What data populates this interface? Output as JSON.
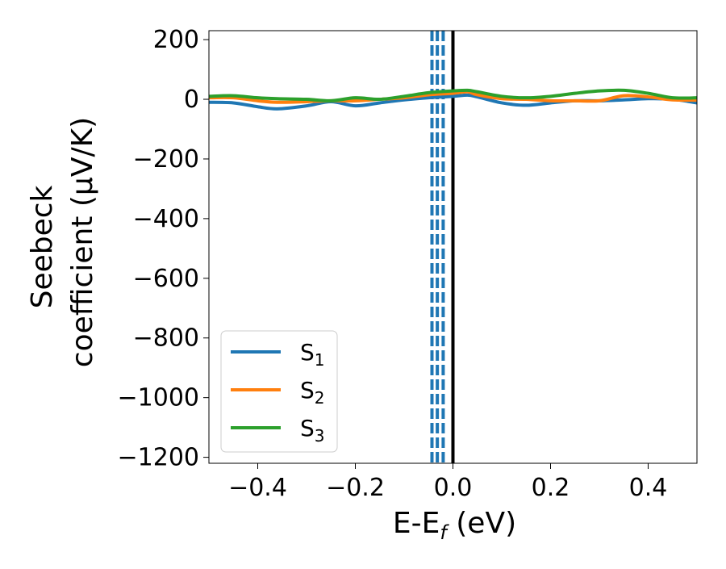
{
  "chart_data": {
    "type": "line",
    "xlabel": {
      "main": "E-E",
      "sub": "f",
      "tail": " (eV)"
    },
    "ylabel": {
      "line1": "Seebeck",
      "line2": "coefficient  (μV/K)"
    },
    "xlim": [
      -0.5,
      0.5
    ],
    "ylim": [
      -1220,
      230
    ],
    "x_ticks": [
      -0.4,
      -0.2,
      0.0,
      0.2,
      0.4
    ],
    "x_tick_labels": [
      "−0.4",
      "−0.2",
      "0.0",
      "0.2",
      "0.4"
    ],
    "y_ticks": [
      200,
      0,
      -200,
      -400,
      -600,
      -800,
      -1000,
      -1200
    ],
    "y_tick_labels": [
      "200",
      "0",
      "−200",
      "−400",
      "−600",
      "−800",
      "−1000",
      "−1200"
    ],
    "grid": false,
    "legend_position": "lower-left",
    "vertical_lines": [
      {
        "x": -0.043,
        "style": "dashed",
        "color": "#1f77b4"
      },
      {
        "x": -0.032,
        "style": "dashed",
        "color": "#1f77b4"
      },
      {
        "x": -0.02,
        "style": "dashed",
        "color": "#1f77b4"
      },
      {
        "x": 0.0,
        "style": "solid",
        "color": "#000000"
      }
    ],
    "x": [
      -0.5,
      -0.45,
      -0.4,
      -0.36,
      -0.3,
      -0.25,
      -0.2,
      -0.15,
      -0.1,
      -0.05,
      0.0,
      0.03,
      0.05,
      0.1,
      0.15,
      0.2,
      0.25,
      0.3,
      0.35,
      0.4,
      0.45,
      0.5
    ],
    "series": [
      {
        "name": "S",
        "sub": "1",
        "color": "#1f77b4",
        "values": [
          -10,
          -12,
          -25,
          -32,
          -22,
          -8,
          -22,
          -12,
          -2,
          5,
          10,
          14,
          8,
          -12,
          -20,
          -12,
          -5,
          -5,
          -2,
          2,
          0,
          -12
        ]
      },
      {
        "name": "S",
        "sub": "2",
        "color": "#ff7f0e",
        "values": [
          5,
          5,
          -5,
          -10,
          -8,
          -5,
          -5,
          0,
          5,
          15,
          20,
          25,
          15,
          2,
          0,
          -5,
          -5,
          -5,
          12,
          8,
          -2,
          -3
        ]
      },
      {
        "name": "S",
        "sub": "3",
        "color": "#2ca02c",
        "values": [
          10,
          12,
          5,
          2,
          0,
          -5,
          5,
          0,
          10,
          22,
          28,
          30,
          25,
          10,
          5,
          10,
          20,
          28,
          30,
          20,
          5,
          5
        ]
      }
    ]
  }
}
